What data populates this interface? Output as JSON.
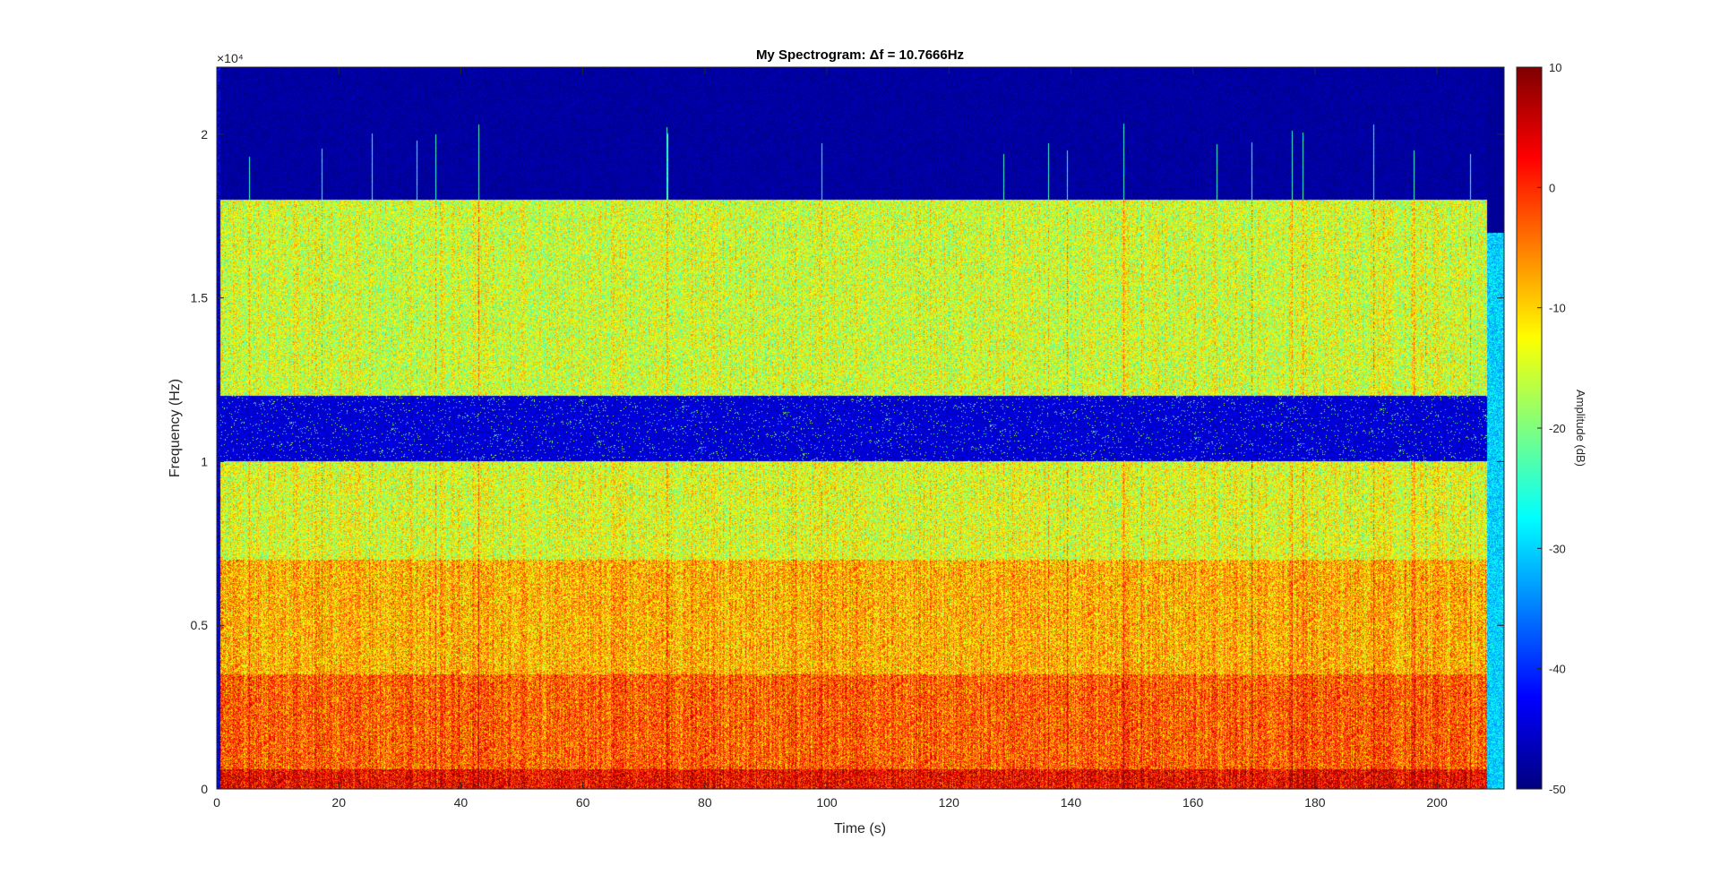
{
  "chart_data": {
    "type": "heatmap",
    "title": "My Spectrogram: Δf = 10.7666Hz",
    "xlabel": "Time (s)",
    "ylabel": "Frequency (Hz)",
    "xlim": [
      0,
      211
    ],
    "ylim": [
      0,
      22050
    ],
    "x_ticks": [
      0,
      20,
      40,
      60,
      80,
      100,
      120,
      140,
      160,
      180,
      200
    ],
    "x_tick_labels": [
      "0",
      "20",
      "40",
      "60",
      "80",
      "100",
      "120",
      "140",
      "160",
      "180",
      "200"
    ],
    "y_ticks": [
      0,
      5000,
      10000,
      15000,
      20000
    ],
    "y_tick_labels": [
      "0",
      "0.5",
      "1",
      "1.5",
      "2"
    ],
    "y_exponent_label": "×10⁴",
    "colormap": "jet",
    "colorbar": {
      "label": "Amplitude (dB)",
      "clim": [
        -50,
        10
      ],
      "ticks": [
        10,
        0,
        -10,
        -20,
        -30,
        -40,
        -50
      ],
      "tick_labels": [
        "10",
        "0",
        "-10",
        "-20",
        "-30",
        "-40",
        "-50"
      ]
    },
    "bands": [
      {
        "description": "low-frequency energy",
        "freq_range_hz": [
          0,
          3500
        ],
        "level_db": -3
      },
      {
        "description": "mid energy",
        "freq_range_hz": [
          3500,
          7000
        ],
        "level_db": -8
      },
      {
        "description": "upper-mid energy",
        "freq_range_hz": [
          7000,
          10000
        ],
        "level_db": -14
      },
      {
        "description": "notch",
        "freq_range_hz": [
          10000,
          12000
        ],
        "level_db": -48
      },
      {
        "description": "high energy",
        "freq_range_hz": [
          12000,
          18000
        ],
        "level_db": -15
      },
      {
        "description": "silent band above cutoff",
        "freq_range_hz": [
          18000,
          22050
        ],
        "level_db": -50
      }
    ],
    "cutoff_end": {
      "time_s": 208,
      "freq_hz": 17000
    }
  }
}
